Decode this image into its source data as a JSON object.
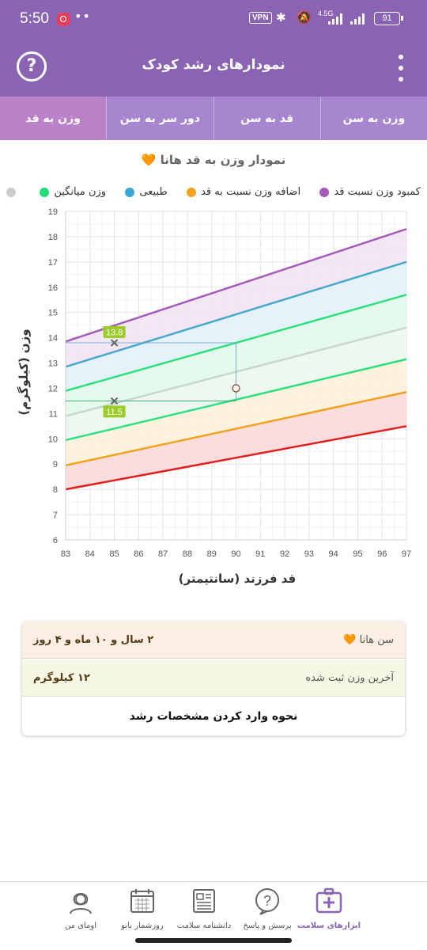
{
  "status": {
    "time": "5:50",
    "vpn": "VPN",
    "network": "4.5G",
    "battery": "91"
  },
  "header": {
    "title": "نمودارهای رشد کودک",
    "help_icon": "?"
  },
  "tabs": [
    {
      "label": "وزن به قد",
      "active": true
    },
    {
      "label": "دور سر به سن",
      "active": false
    },
    {
      "label": "قد به سن",
      "active": false
    },
    {
      "label": "وزن به سن",
      "active": false
    }
  ],
  "chart_title": "نمودار وزن به قد هانا 🧡",
  "legend": [
    {
      "label": "کمبود وزن نسبت قد",
      "color": "#a659b7"
    },
    {
      "label": "اضافه وزن نسبت به قد",
      "color": "#f4a022"
    },
    {
      "label": "طبیعی",
      "color": "#3aa7d4"
    },
    {
      "label": "وزن میانگین",
      "color": "#22dd77"
    },
    {
      "label": "",
      "color": "#cccccc"
    }
  ],
  "chart_data": {
    "type": "line",
    "xlabel": "قد فرزند (سانتیمتر)",
    "ylabel": "وزن (کیلوگرم)",
    "xlim": [
      83,
      97
    ],
    "ylim": [
      6,
      19
    ],
    "xticks": [
      83,
      84,
      85,
      86,
      87,
      88,
      89,
      90,
      91,
      92,
      93,
      94,
      95,
      96,
      97
    ],
    "yticks": [
      6,
      7,
      8,
      9,
      10,
      11,
      12,
      13,
      14,
      15,
      16,
      17,
      18,
      19
    ],
    "grid": true,
    "series": [
      {
        "color": "#a55bb8",
        "fill": "#f2e3f4",
        "x": [
          83,
          97
        ],
        "y": [
          13.85,
          18.3
        ]
      },
      {
        "color": "#4aa8cc",
        "fill": "#e1f1f8",
        "x": [
          83,
          97
        ],
        "y": [
          12.85,
          17.0
        ]
      },
      {
        "color": "#2ee07d",
        "fill": "#e2f8ea",
        "x": [
          83,
          97
        ],
        "y": [
          11.9,
          15.7
        ]
      },
      {
        "color": "#c7d9cc",
        "fill": "#ecf7ee",
        "x": [
          83,
          97
        ],
        "y": [
          10.9,
          14.4
        ]
      },
      {
        "color": "#2ee07d",
        "fill": "#fdf1d9",
        "x": [
          83,
          97
        ],
        "y": [
          9.95,
          13.15
        ]
      },
      {
        "color": "#f2a11d",
        "fill": "#fcd9d9",
        "x": [
          83,
          97
        ],
        "y": [
          8.95,
          11.85
        ]
      },
      {
        "color": "#e31e1e",
        "fill": "none",
        "x": [
          83,
          97
        ],
        "y": [
          8.0,
          10.5
        ]
      }
    ],
    "markers": [
      {
        "x": 85,
        "y": 13.8,
        "label": "13.8"
      },
      {
        "x": 85,
        "y": 11.5,
        "label": "11.5"
      }
    ],
    "point": {
      "x": 90,
      "y": 12
    }
  },
  "info": {
    "age_label": "سن هانا 🧡",
    "age_value": "۲ سال و ۱۰ ماه و ۴ روز",
    "weight_label": "آخرین وزن ثبت شده",
    "weight_value": "۱۲ کیلوگرم",
    "how_to": "نحوه وارد کردن مشخصات رشد"
  },
  "nav": [
    {
      "label": "ابزارهای سلامت",
      "icon": "first-aid-kit-icon",
      "active": true
    },
    {
      "label": "پرسش و پاسخ",
      "icon": "question-bubble-icon",
      "active": false
    },
    {
      "label": "دانشنامه سلامت",
      "icon": "newspaper-icon",
      "active": false
    },
    {
      "label": "روزشمار بانو",
      "icon": "calendar-icon",
      "active": false
    },
    {
      "label": "اومای من",
      "icon": "woman-avatar-icon",
      "active": false
    }
  ]
}
